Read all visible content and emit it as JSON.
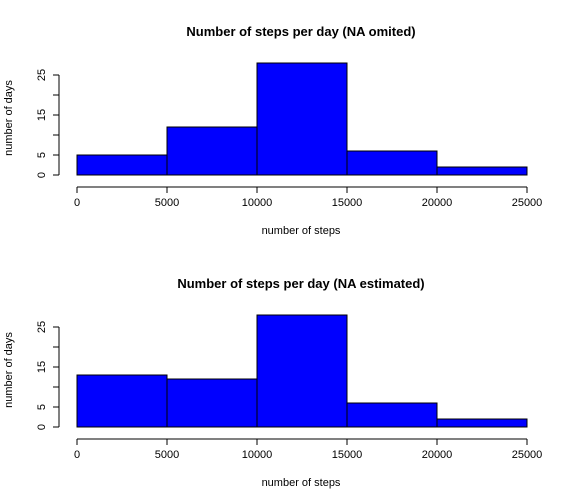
{
  "colors": {
    "bar_fill": "#0000ff",
    "bar_border": "#000000",
    "background": "#ffffff"
  },
  "chart_data": [
    {
      "type": "bar",
      "title": "Number of steps per day (NA omited)",
      "xlabel": "number of steps",
      "ylabel": "number of days",
      "bins": [
        {
          "from": 0,
          "to": 5000,
          "count": 5
        },
        {
          "from": 5000,
          "to": 10000,
          "count": 12
        },
        {
          "from": 10000,
          "to": 15000,
          "count": 28
        },
        {
          "from": 15000,
          "to": 20000,
          "count": 6
        },
        {
          "from": 20000,
          "to": 25000,
          "count": 2
        }
      ],
      "xlim": [
        0,
        25000
      ],
      "ylim": [
        0,
        28
      ],
      "x_ticks": [
        "0",
        "5000",
        "10000",
        "15000",
        "20000",
        "25000"
      ],
      "y_ticks": [
        "0",
        "5",
        "15",
        "25"
      ],
      "grid": false
    },
    {
      "type": "bar",
      "title": "Number of steps per day (NA estimated)",
      "xlabel": "number of steps",
      "ylabel": "number of days",
      "bins": [
        {
          "from": 0,
          "to": 5000,
          "count": 13
        },
        {
          "from": 5000,
          "to": 10000,
          "count": 12
        },
        {
          "from": 10000,
          "to": 15000,
          "count": 28
        },
        {
          "from": 15000,
          "to": 20000,
          "count": 6
        },
        {
          "from": 20000,
          "to": 25000,
          "count": 2
        }
      ],
      "xlim": [
        0,
        25000
      ],
      "ylim": [
        0,
        28
      ],
      "x_ticks": [
        "0",
        "5000",
        "10000",
        "15000",
        "20000",
        "25000"
      ],
      "y_ticks": [
        "0",
        "5",
        "15",
        "25"
      ],
      "grid": false
    }
  ]
}
